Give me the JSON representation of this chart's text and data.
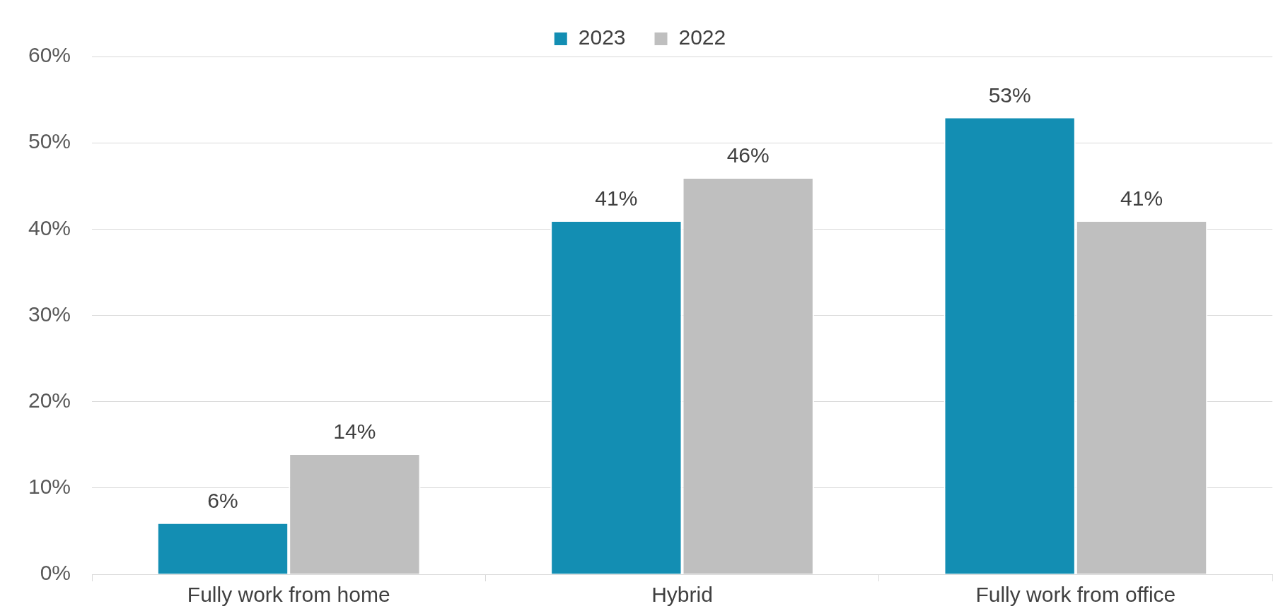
{
  "chart_data": {
    "type": "bar",
    "categories": [
      "Fully work from home",
      "Hybrid",
      "Fully work from office"
    ],
    "series": [
      {
        "name": "2023",
        "color": "#138eb3",
        "values": [
          6,
          41,
          53
        ],
        "value_labels": [
          "6%",
          "41%",
          "53%"
        ]
      },
      {
        "name": "2022",
        "color": "#bfbfbf",
        "values": [
          14,
          46,
          41
        ],
        "value_labels": [
          "14%",
          "46%",
          "41%"
        ]
      }
    ],
    "ylim": [
      0,
      60
    ],
    "yticks": [
      {
        "value": 0,
        "label": "0%"
      },
      {
        "value": 10,
        "label": "10%"
      },
      {
        "value": 20,
        "label": "20%"
      },
      {
        "value": 30,
        "label": "30%"
      },
      {
        "value": 40,
        "label": "40%"
      },
      {
        "value": 50,
        "label": "50%"
      },
      {
        "value": 60,
        "label": "60%"
      }
    ],
    "grid": "y",
    "legend": "top"
  }
}
